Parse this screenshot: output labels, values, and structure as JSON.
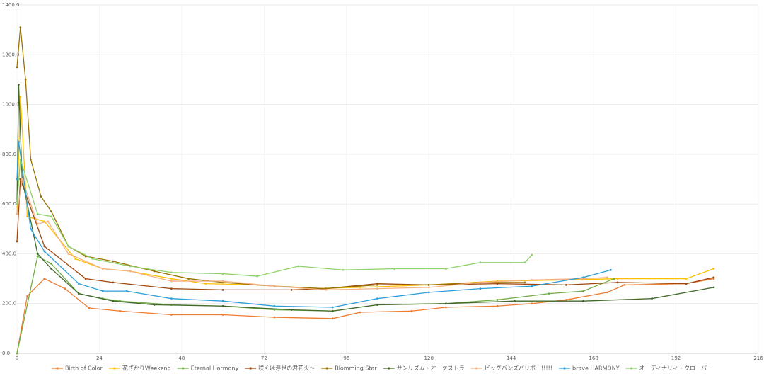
{
  "chart_data": {
    "type": "line",
    "xlim": [
      0,
      216
    ],
    "xticks": [
      0,
      24,
      48,
      72,
      96,
      120,
      144,
      168,
      192,
      216
    ],
    "ylim": [
      0,
      1400
    ],
    "yticks": [
      {
        "value": 0,
        "label": "0.0"
      },
      {
        "value": 200,
        "label": "200.0"
      },
      {
        "value": 400,
        "label": "400.0"
      },
      {
        "value": 600,
        "label": "600.0"
      },
      {
        "value": 800,
        "label": "800.0"
      },
      {
        "value": 1000,
        "label": "1000.0"
      },
      {
        "value": 1200,
        "label": "1200.0"
      },
      {
        "value": 1400,
        "label": "1400.0"
      }
    ],
    "grid": true,
    "legend": "bottom",
    "series": [
      {
        "name": "Birth of Color",
        "color": "#ed7d31",
        "x": [
          0,
          3,
          8,
          14,
          21,
          30,
          45,
          60,
          75,
          92,
          100,
          115,
          125,
          140,
          150,
          160,
          172,
          177,
          195,
          203
        ],
        "values": [
          0,
          230,
          300,
          260,
          182,
          170,
          155,
          155,
          145,
          140,
          165,
          170,
          185,
          190,
          200,
          215,
          245,
          275,
          280,
          300
        ]
      },
      {
        "name": "花ざかりWeekend",
        "color": "#ffc000",
        "x": [
          0,
          1,
          3,
          8,
          17,
          25,
          33,
          45,
          55,
          70,
          85,
          100,
          120,
          140,
          160,
          175,
          195,
          203
        ],
        "values": [
          560,
          1030,
          550,
          530,
          380,
          340,
          330,
          300,
          280,
          275,
          260,
          265,
          275,
          290,
          295,
          300,
          300,
          340
        ]
      },
      {
        "name": "Eternal Harmony",
        "color": "#70ad47",
        "x": [
          0,
          6,
          10,
          18,
          25,
          30,
          45,
          60,
          75,
          92,
          105,
          125,
          140,
          155,
          165,
          174
        ],
        "values": [
          0,
          390,
          360,
          240,
          220,
          210,
          195,
          190,
          175,
          170,
          195,
          200,
          215,
          240,
          250,
          300
        ]
      },
      {
        "name": "咲くは浮世の君花火～",
        "color": "#9e480e",
        "x": [
          0,
          1,
          8,
          20,
          28,
          45,
          60,
          80,
          90,
          105,
          120,
          140,
          160,
          175,
          195,
          203
        ],
        "values": [
          450,
          700,
          430,
          300,
          285,
          260,
          255,
          255,
          260,
          280,
          275,
          280,
          275,
          285,
          280,
          305
        ]
      },
      {
        "name": "Blomming Star",
        "color": "#997300",
        "x": [
          0,
          1,
          2.5,
          4,
          7,
          10,
          15,
          20,
          28,
          40,
          50,
          60,
          75,
          90,
          105,
          120,
          135,
          148
        ],
        "values": [
          1150,
          1310,
          1100,
          780,
          630,
          570,
          430,
          390,
          370,
          330,
          300,
          285,
          270,
          260,
          275,
          275,
          285,
          285
        ]
      },
      {
        "name": "サンリズム・オーケストラ",
        "color": "#43682b",
        "x": [
          0,
          0.5,
          1.5,
          6,
          10,
          18,
          28,
          40,
          60,
          80,
          92,
          105,
          125,
          145,
          165,
          185,
          203
        ],
        "values": [
          600,
          1080,
          700,
          400,
          340,
          240,
          210,
          195,
          190,
          175,
          170,
          195,
          200,
          210,
          210,
          220,
          265
        ]
      },
      {
        "name": "ビッグバンズバリボー!!!!!",
        "color": "#f4b183",
        "x": [
          0,
          1.5,
          6,
          9,
          15,
          25,
          33,
          45,
          60,
          75,
          90,
          105,
          120,
          135,
          150,
          165,
          172
        ],
        "values": [
          560,
          700,
          520,
          530,
          400,
          340,
          330,
          290,
          290,
          270,
          255,
          260,
          265,
          285,
          295,
          300,
          305
        ]
      },
      {
        "name": "brave HARMONY",
        "color": "#2e9fd8",
        "x": [
          0,
          0.5,
          4,
          8,
          18,
          25,
          32,
          45,
          60,
          75,
          92,
          105,
          120,
          135,
          150,
          165,
          173
        ],
        "values": [
          700,
          850,
          500,
          410,
          280,
          250,
          250,
          220,
          210,
          190,
          185,
          220,
          245,
          260,
          270,
          305,
          335
        ]
      },
      {
        "name": "オーディナリィ・クローバー",
        "color": "#8fd16a",
        "x": [
          0,
          1,
          6,
          10,
          15,
          22,
          33,
          45,
          60,
          70,
          82,
          95,
          110,
          125,
          135,
          148,
          150
        ],
        "values": [
          600,
          780,
          560,
          550,
          430,
          380,
          350,
          325,
          320,
          310,
          350,
          335,
          340,
          340,
          365,
          365,
          395
        ]
      }
    ]
  }
}
